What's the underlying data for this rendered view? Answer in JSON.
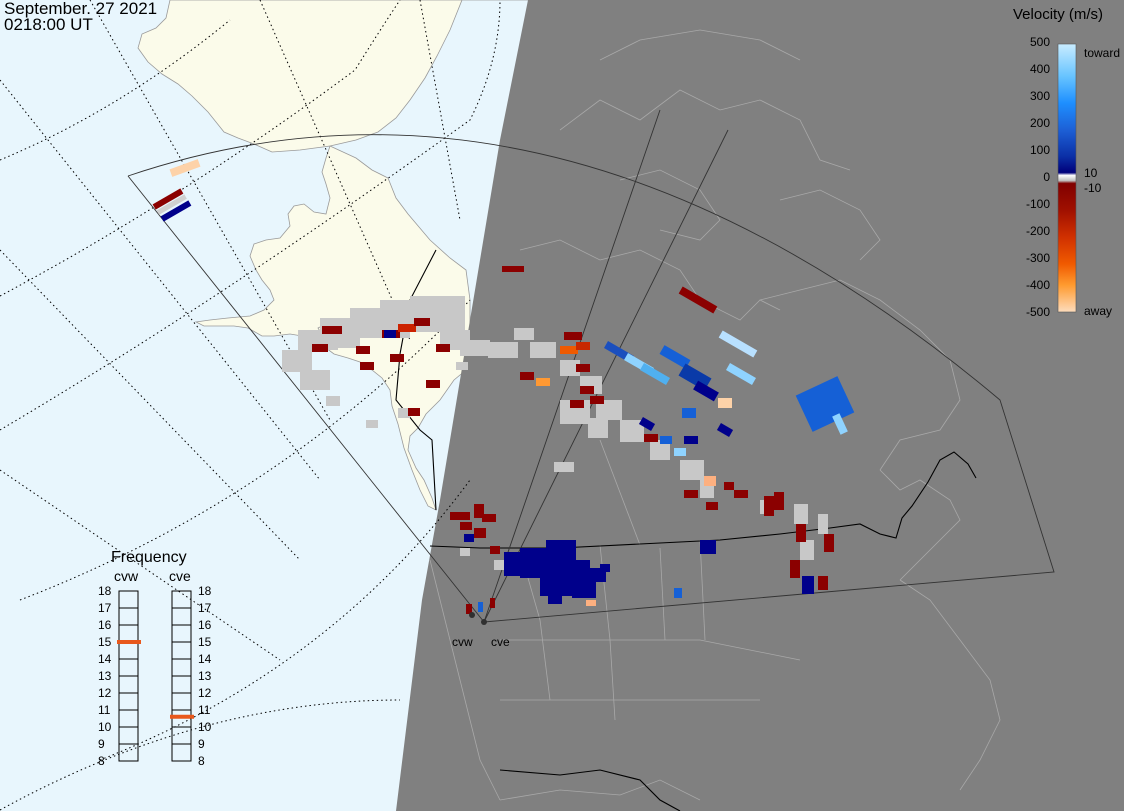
{
  "header": {
    "date": "September. 27 2021",
    "time": "0218:00 UT"
  },
  "colors": {
    "ocean": "#e8f6fd",
    "land": "#fbfbea",
    "night": "#808080",
    "ground_scatter": "#c8c8c8",
    "border": "#000000",
    "grid": "#000000"
  },
  "velocity_scale": {
    "title": "Velocity (m/s)",
    "ticks": [
      "500",
      "400",
      "300",
      "200",
      "100",
      "0",
      "-100",
      "-200",
      "-300",
      "-400",
      "-500"
    ],
    "toward_label": "toward",
    "away_label": "away",
    "plus_label": "10",
    "minus_label": "-10"
  },
  "frequency_panel": {
    "title": "Frequency",
    "radars": [
      {
        "name": "cvw",
        "value_mhz": 15
      },
      {
        "name": "cve",
        "value_mhz": 10.6
      }
    ],
    "ticks": [
      "18",
      "17",
      "16",
      "15",
      "14",
      "13",
      "12",
      "11",
      "10",
      "9",
      "8"
    ],
    "marker_color": "#e8581c"
  },
  "radar_sites": [
    {
      "name": "cvw"
    },
    {
      "name": "cve"
    }
  ]
}
